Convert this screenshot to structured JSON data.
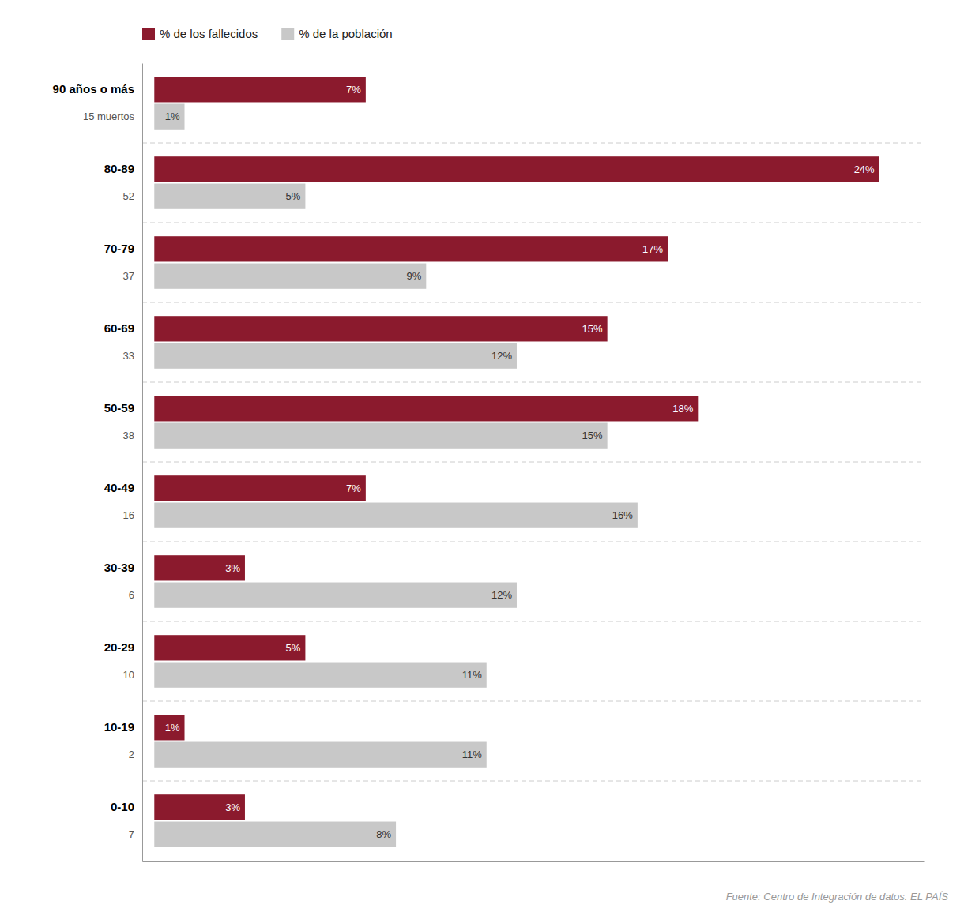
{
  "chart_data": {
    "type": "bar",
    "orientation": "horizontal",
    "categories": [
      "90 años o más",
      "80-89",
      "70-79",
      "60-69",
      "50-59",
      "40-49",
      "30-39",
      "20-29",
      "10-19",
      "0-10"
    ],
    "series": [
      {
        "name": "% de los fallecidos",
        "color": "#8B1A2D",
        "values": [
          7,
          24,
          17,
          15,
          18,
          7,
          3,
          5,
          1,
          3
        ],
        "value_labels": [
          "7%",
          "24%",
          "17%",
          "15%",
          "18%",
          "7%",
          "3%",
          "5%",
          "1%",
          "3%"
        ]
      },
      {
        "name": "% de la población",
        "color": "#C8C8C8",
        "values": [
          1,
          5,
          9,
          12,
          15,
          16,
          12,
          11,
          11,
          8
        ],
        "value_labels": [
          "1%",
          "5%",
          "9%",
          "12%",
          "15%",
          "16%",
          "12%",
          "11%",
          "11%",
          "8%"
        ]
      }
    ],
    "annotations": [
      "15 muertos",
      "52",
      "37",
      "33",
      "38",
      "16",
      "6",
      "10",
      "2",
      "7"
    ],
    "source": "Fuente: Centro de Integración de datos. EL PAÍS",
    "xlim": [
      -0.4,
      25.5
    ],
    "data_labels": true,
    "tick_labels": "y",
    "legend": "upper left",
    "grid": false
  }
}
